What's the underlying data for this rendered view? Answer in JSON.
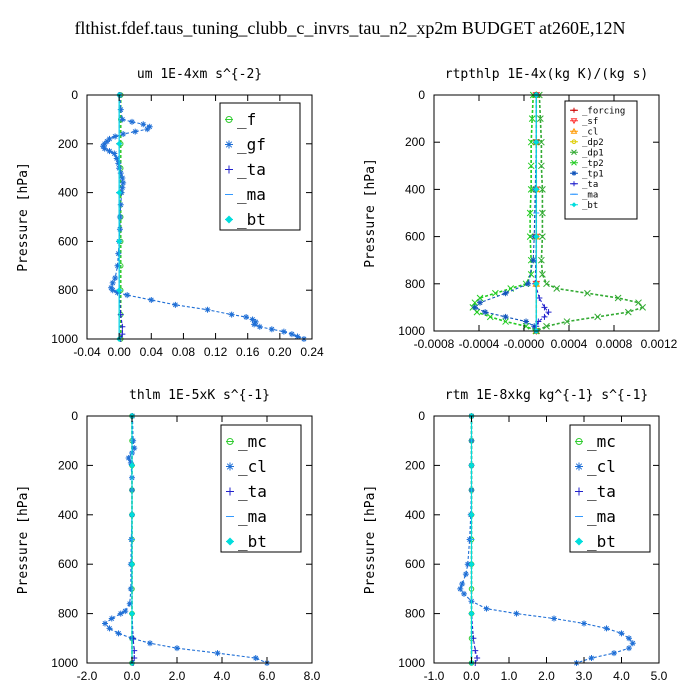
{
  "title": "flthist.fdef.taus_tuning_clubb_c_invrs_tau_n2_xp2m  BUDGET at260E,12N",
  "chart_data": [
    {
      "type": "line",
      "title": "um   1E-4xm s^{-2}",
      "ylabel": "Pressure [hPa]",
      "yticks": [
        0,
        200,
        400,
        600,
        800,
        1000
      ],
      "ylim": [
        0,
        1000
      ],
      "xlim": [
        -0.04,
        0.24
      ],
      "xticks": [
        "-0.04",
        "0.00",
        "0.04",
        "0.08",
        "0.12",
        "0.16",
        "0.20",
        "0.24"
      ],
      "legend_position": "top-right",
      "series": [
        {
          "name": "_f",
          "color": "#33cc33",
          "marker": "o",
          "p": [
            0,
            100,
            200,
            300,
            400,
            500,
            600,
            700,
            800,
            900,
            1000
          ],
          "x": [
            0.002,
            0.002,
            0.002,
            0.002,
            0.002,
            0.002,
            0.002,
            0.002,
            0.002,
            0.002,
            0.002
          ]
        },
        {
          "name": "_gf",
          "color": "#1f6fd6",
          "marker": "*",
          "p": [
            0,
            60,
            100,
            110,
            120,
            130,
            140,
            150,
            160,
            170,
            180,
            190,
            200,
            210,
            220,
            230,
            240,
            260,
            280,
            300,
            320,
            340,
            360,
            380,
            400,
            450,
            500,
            550,
            600,
            650,
            700,
            750,
            770,
            790,
            800,
            810,
            820,
            840,
            860,
            880,
            900,
            910,
            920,
            930,
            940,
            950,
            960,
            970,
            980,
            990,
            1000
          ],
          "x": [
            0.001,
            0.002,
            0.004,
            0.016,
            0.03,
            0.038,
            0.035,
            0.02,
            0.005,
            -0.005,
            -0.012,
            -0.015,
            -0.018,
            -0.02,
            -0.018,
            -0.012,
            -0.006,
            -0.003,
            -0.001,
            0.0,
            0.002,
            0.004,
            0.005,
            0.004,
            0.003,
            0.002,
            0.001,
            0.001,
            0.0,
            -0.001,
            -0.002,
            -0.005,
            -0.008,
            -0.01,
            -0.008,
            -0.002,
            0.01,
            0.04,
            0.07,
            0.11,
            0.14,
            0.158,
            0.166,
            0.17,
            0.168,
            0.175,
            0.19,
            0.205,
            0.215,
            0.222,
            0.23
          ]
        },
        {
          "name": "_ta",
          "color": "#2222cc",
          "marker": "+",
          "p": [
            0,
            200,
            400,
            600,
            800,
            900,
            950,
            980,
            1000
          ],
          "x": [
            0.0,
            0.0,
            0.0,
            0.0,
            0.0,
            0.002,
            0.004,
            0.004,
            0.002
          ]
        },
        {
          "name": "_ma",
          "color": "#3399ff",
          "marker": "-",
          "p": [
            0,
            400,
            800,
            1000
          ],
          "x": [
            0.0,
            0.0,
            0.0,
            0.0
          ]
        },
        {
          "name": "_bt",
          "color": "#00dddd",
          "marker": "d",
          "p": [
            0,
            200,
            400,
            600,
            800,
            1000
          ],
          "x": [
            0.0,
            0.0,
            0.0,
            0.0,
            0.0,
            0.0
          ]
        }
      ]
    },
    {
      "type": "line",
      "title": "rtpthlp   1E-4x(kg K)/(kg s)",
      "ylabel": "Pressure [hPa]",
      "yticks": [
        0,
        200,
        400,
        600,
        800,
        1000
      ],
      "ylim": [
        0,
        1000
      ],
      "xlim": [
        -0.001,
        0.0012
      ],
      "xticks": [
        "-0.0008",
        "-0.0004",
        "-0.0000",
        "0.0004",
        "0.0008",
        "0.0012"
      ],
      "legend_position": "top-right",
      "series": [
        {
          "name": "_forcing",
          "color": "#cc0000",
          "marker": "+",
          "p": [
            0,
            200,
            400,
            600,
            800,
            1000
          ],
          "x": [
            0,
            0,
            0,
            0,
            0,
            0
          ]
        },
        {
          "name": "_sf",
          "color": "#ff3333",
          "marker": "v",
          "p": [
            0,
            200,
            400,
            600,
            800,
            1000
          ],
          "x": [
            0,
            0,
            0,
            0,
            0,
            0
          ]
        },
        {
          "name": "_cl",
          "color": "#ff9900",
          "marker": "^",
          "p": [
            0,
            200,
            400,
            600,
            800,
            1000
          ],
          "x": [
            0,
            0,
            0,
            0,
            0,
            0
          ]
        },
        {
          "name": "_dp2",
          "color": "#ddcc00",
          "marker": "o",
          "p": [
            0,
            200,
            400,
            600,
            800,
            1000
          ],
          "x": [
            0,
            0,
            0,
            0,
            0,
            0
          ]
        },
        {
          "name": "_dp1",
          "color": "#33aa33",
          "marker": "x",
          "p": [
            0,
            100,
            200,
            300,
            400,
            500,
            600,
            700,
            760,
            800,
            820,
            840,
            860,
            880,
            900,
            920,
            940,
            960,
            980,
            1000
          ],
          "x": [
            3e-05,
            4e-05,
            5e-05,
            5e-05,
            6e-05,
            6e-05,
            6e-05,
            5e-05,
            6e-05,
            0.0001,
            0.0002,
            0.0005,
            0.0008,
            0.001,
            0.00104,
            0.0009,
            0.0006,
            0.0003,
            0.0001,
            0.0
          ]
        },
        {
          "name": "_tp2",
          "color": "#22cc22",
          "marker": "x",
          "p": [
            0,
            100,
            200,
            300,
            400,
            500,
            600,
            700,
            760,
            800,
            820,
            840,
            860,
            880,
            900,
            920,
            940,
            960,
            980,
            1000
          ],
          "x": [
            -3e-05,
            -4e-05,
            -5e-05,
            -5e-05,
            -5e-05,
            -6e-05,
            -6e-05,
            -5e-05,
            -5e-05,
            -0.0001,
            -0.00025,
            -0.0004,
            -0.00055,
            -0.0006,
            -0.00062,
            -0.00058,
            -0.00045,
            -0.0003,
            -0.0001,
            0.0
          ]
        },
        {
          "name": "_tp1",
          "color": "#1155bb",
          "marker": "*",
          "p": [
            0,
            200,
            400,
            600,
            700,
            800,
            840,
            880,
            900,
            920,
            940,
            960,
            980,
            1000
          ],
          "x": [
            0,
            0,
            -1e-05,
            -2e-05,
            -3e-05,
            -8e-05,
            -0.0003,
            -0.00055,
            -0.0006,
            -0.0005,
            -0.0003,
            -0.0001,
            -2e-05,
            0
          ]
        },
        {
          "name": "_ta",
          "color": "#2222cc",
          "marker": "+",
          "p": [
            0,
            200,
            400,
            600,
            800,
            860,
            900,
            920,
            940,
            960,
            980,
            1000
          ],
          "x": [
            0,
            0,
            0,
            0,
            -1e-05,
            3e-05,
            8e-05,
            0.00012,
            8e-05,
            2e-05,
            0,
            0
          ]
        },
        {
          "name": "_ma",
          "color": "#3399ff",
          "marker": "-",
          "p": [
            0,
            500,
            1000
          ],
          "x": [
            0,
            0,
            0
          ]
        },
        {
          "name": "_bt",
          "color": "#00dddd",
          "marker": "d",
          "p": [
            0,
            200,
            400,
            600,
            800,
            1000
          ],
          "x": [
            0,
            0,
            0,
            0,
            0,
            0
          ]
        }
      ]
    },
    {
      "type": "line",
      "title": "thlm   1E-5xK s^{-1}",
      "ylabel": "Pressure [hPa]",
      "yticks": [
        0,
        200,
        400,
        600,
        800,
        1000
      ],
      "ylim": [
        0,
        1000
      ],
      "xlim": [
        -2.0,
        8.0
      ],
      "xticks": [
        "-2.0",
        "0.0",
        "2.0",
        "4.0",
        "6.0",
        "8.0"
      ],
      "legend_position": "top-right",
      "series": [
        {
          "name": "_mc",
          "color": "#33cc33",
          "marker": "o",
          "p": [
            0,
            100,
            200,
            300,
            400,
            500,
            600,
            700,
            800,
            900,
            1000
          ],
          "x": [
            0,
            0,
            0,
            0,
            0,
            0,
            0,
            0,
            0,
            0,
            0
          ]
        },
        {
          "name": "_cl",
          "color": "#1f6fd6",
          "marker": "*",
          "p": [
            0,
            100,
            130,
            150,
            170,
            190,
            250,
            300,
            400,
            500,
            600,
            700,
            760,
            790,
            800,
            820,
            840,
            860,
            880,
            900,
            920,
            940,
            960,
            980,
            1000
          ],
          "x": [
            0.02,
            0.05,
            0.1,
            0.0,
            -0.15,
            -0.05,
            0.0,
            0.0,
            0.0,
            -0.03,
            -0.05,
            -0.05,
            -0.1,
            -0.3,
            -0.5,
            -0.9,
            -1.2,
            -1.0,
            -0.6,
            0.0,
            0.8,
            2.0,
            3.8,
            5.5,
            6.0
          ]
        },
        {
          "name": "_ta",
          "color": "#2222cc",
          "marker": "+",
          "p": [
            0,
            200,
            400,
            600,
            800,
            900,
            950,
            980,
            1000
          ],
          "x": [
            0,
            0,
            0,
            0,
            0,
            0.05,
            0.1,
            0.1,
            0.05
          ]
        },
        {
          "name": "_ma",
          "color": "#3399ff",
          "marker": "-",
          "p": [
            0,
            500,
            1000
          ],
          "x": [
            0,
            0,
            0
          ]
        },
        {
          "name": "_bt",
          "color": "#00dddd",
          "marker": "d",
          "p": [
            0,
            200,
            400,
            600,
            800,
            1000
          ],
          "x": [
            0,
            0,
            0,
            0,
            0,
            0
          ]
        }
      ]
    },
    {
      "type": "line",
      "title": "rtm   1E-8xkg kg^{-1} s^{-1}",
      "ylabel": "Pressure [hPa]",
      "yticks": [
        0,
        200,
        400,
        600,
        800,
        1000
      ],
      "ylim": [
        0,
        1000
      ],
      "xlim": [
        -1.0,
        5.0
      ],
      "xticks": [
        "-1.0",
        "0.0",
        "1.0",
        "2.0",
        "3.0",
        "4.0",
        "5.0"
      ],
      "legend_position": "top-right",
      "series": [
        {
          "name": "_mc",
          "color": "#33cc33",
          "marker": "o",
          "p": [
            0,
            100,
            200,
            300,
            400,
            500,
            600,
            700,
            800,
            900,
            1000
          ],
          "x": [
            0,
            0,
            0,
            0,
            0,
            0,
            0,
            0,
            0,
            0,
            0
          ]
        },
        {
          "name": "_cl",
          "color": "#1f6fd6",
          "marker": "*",
          "p": [
            0,
            100,
            200,
            300,
            400,
            500,
            600,
            640,
            680,
            700,
            720,
            750,
            780,
            800,
            820,
            840,
            860,
            880,
            900,
            920,
            940,
            960,
            980,
            1000
          ],
          "x": [
            0,
            0,
            0,
            0,
            -0.02,
            -0.05,
            -0.1,
            -0.15,
            -0.25,
            -0.3,
            -0.2,
            0.0,
            0.4,
            1.2,
            2.2,
            3.0,
            3.6,
            4.0,
            4.2,
            4.3,
            4.2,
            3.8,
            3.2,
            2.8
          ]
        },
        {
          "name": "_ta",
          "color": "#2222cc",
          "marker": "+",
          "p": [
            0,
            200,
            400,
            600,
            800,
            900,
            950,
            980,
            1000
          ],
          "x": [
            0,
            0,
            0,
            0,
            0,
            0.05,
            0.1,
            0.15,
            0.1
          ]
        },
        {
          "name": "_ma",
          "color": "#3399ff",
          "marker": "-",
          "p": [
            0,
            500,
            1000
          ],
          "x": [
            0,
            0,
            0
          ]
        },
        {
          "name": "_bt",
          "color": "#00dddd",
          "marker": "d",
          "p": [
            0,
            200,
            400,
            600,
            800,
            1000
          ],
          "x": [
            0,
            0,
            0,
            0,
            0,
            0
          ]
        }
      ]
    }
  ]
}
